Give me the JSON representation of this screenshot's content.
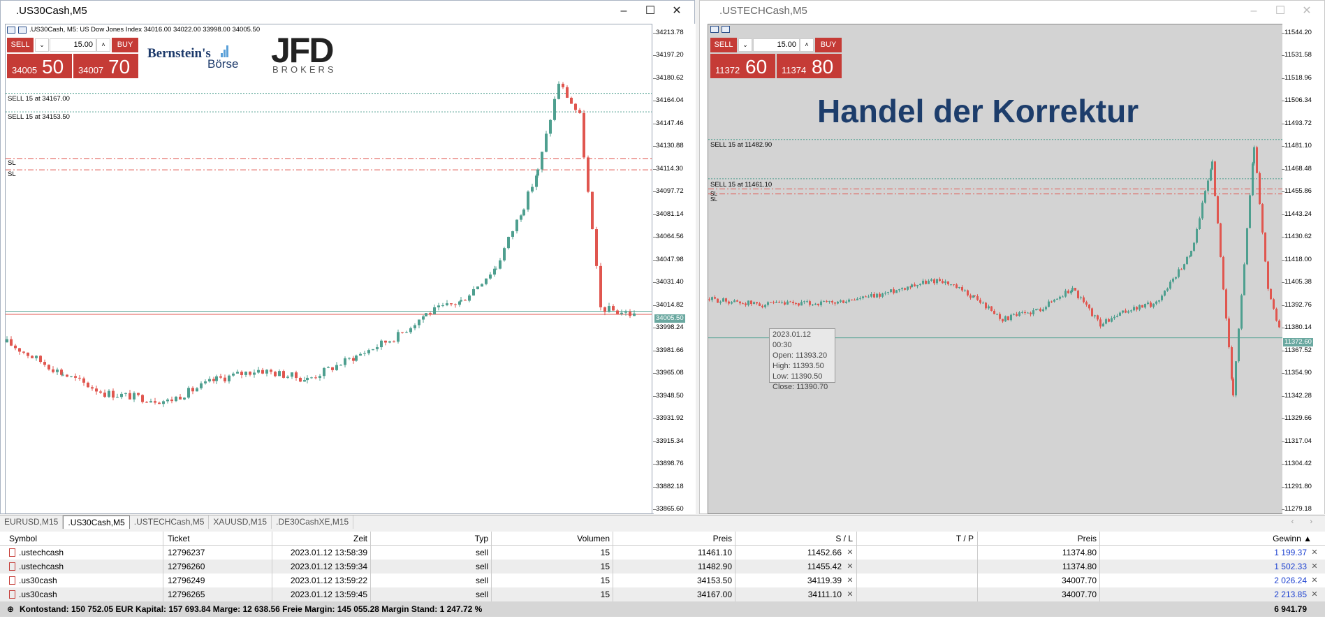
{
  "windowA": {
    "title": ".US30Cash,M5",
    "header": ".US30Cash, M5:  US Dow Jones Index  34016.00 34022.00 33998.00 34005.50",
    "trade": {
      "sell": "SELL",
      "buy": "BUY",
      "volume": "15.00",
      "sell_small": "34005",
      "sell_big": "50",
      "buy_small": "34007",
      "buy_big": "70"
    },
    "logo1": "Bernstein's",
    "logo1b": "Börse",
    "logo2": "JFD",
    "logo2b": "BROKERS",
    "labels": [
      "SELL 15 at 34167.00",
      "SELL 15 at 34153.50",
      "SL",
      "SL"
    ],
    "ticks": [
      "34213.78",
      "34197.20",
      "34180.62",
      "34164.04",
      "34147.46",
      "34130.88",
      "34114.30",
      "34097.72",
      "34081.14",
      "34064.56",
      "34047.98",
      "34031.40",
      "34014.82",
      "33998.24",
      "33981.66",
      "33965.08",
      "33948.50",
      "33931.92",
      "33915.34",
      "33898.76",
      "33882.18",
      "33865.60"
    ],
    "current": "34005.50"
  },
  "windowB": {
    "title": ".USTECHCash,M5",
    "trade": {
      "sell": "SELL",
      "buy": "BUY",
      "volume": "15.00",
      "sell_small": "11372",
      "sell_big": "60",
      "buy_small": "11374",
      "buy_big": "80"
    },
    "headline": "Handel der Korrektur",
    "labels": [
      "SELL 15 at 11482.90",
      "SELL 15 at 11461.10",
      "SL",
      "SL"
    ],
    "ticks": [
      "11544.20",
      "11531.58",
      "11518.96",
      "11506.34",
      "11493.72",
      "11481.10",
      "11468.48",
      "11455.86",
      "11443.24",
      "11430.62",
      "11418.00",
      "11405.38",
      "11392.76",
      "11380.14",
      "11367.52",
      "11354.90",
      "11342.28",
      "11329.66",
      "11317.04",
      "11304.42",
      "11291.80",
      "11279.18"
    ],
    "current": "11372.60",
    "tooltip": [
      "2023.01.12 00:30",
      "Open: 11393.20",
      "High: 11393.50",
      "Low: 11390.50",
      "Close: 11390.70"
    ]
  },
  "tabs": [
    "EURUSD,M15",
    ".US30Cash,M5",
    ".USTECHCash,M5",
    "XAUUSD,M15",
    ".DE30CashXE,M15"
  ],
  "tab_arrows": "‹ ›",
  "table": {
    "headers": {
      "symbol": "Symbol",
      "ticket": "Ticket",
      "time": "Zeit",
      "type": "Typ",
      "volume": "Volumen",
      "price": "Preis",
      "sl": "S / L",
      "tp": "T / P",
      "price2": "Preis",
      "profit": "Gewinn ▲"
    },
    "rows": [
      {
        "symbol": ".ustechcash",
        "ticket": "12796237",
        "time": "2023.01.12 13:58:39",
        "type": "sell",
        "volume": "15",
        "price": "11461.10",
        "sl": "11452.66",
        "tp": "",
        "price2": "11374.80",
        "profit": "1 199.37"
      },
      {
        "symbol": ".ustechcash",
        "ticket": "12796260",
        "time": "2023.01.12 13:59:34",
        "type": "sell",
        "volume": "15",
        "price": "11482.90",
        "sl": "11455.42",
        "tp": "",
        "price2": "11374.80",
        "profit": "1 502.33"
      },
      {
        "symbol": ".us30cash",
        "ticket": "12796249",
        "time": "2023.01.12 13:59:22",
        "type": "sell",
        "volume": "15",
        "price": "34153.50",
        "sl": "34119.39",
        "tp": "",
        "price2": "34007.70",
        "profit": "2 026.24"
      },
      {
        "symbol": ".us30cash",
        "ticket": "12796265",
        "time": "2023.01.12 13:59:45",
        "type": "sell",
        "volume": "15",
        "price": "34167.00",
        "sl": "34111.10",
        "tp": "",
        "price2": "34007.70",
        "profit": "2 213.85"
      }
    ],
    "footer": "Kontostand: 150 752.05 EUR  Kapital: 157 693.84  Marge: 12 638.56  Freie Margin: 145 055.28  Margin Stand: 1 247.72 %",
    "footer_total": "6 941.79"
  },
  "colors": {
    "bull": "#4e9f8f",
    "bear": "#e0564f",
    "sell_red": "#c53b36",
    "profit_blue": "#1a3fd0"
  }
}
